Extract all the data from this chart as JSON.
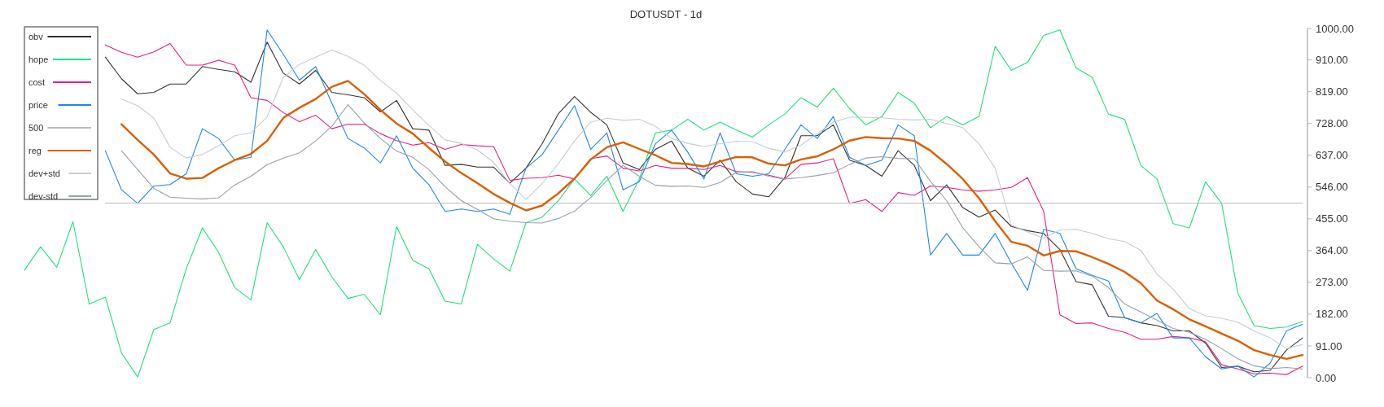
{
  "chart_data": {
    "type": "line",
    "title": "DOTUSDT - 1d",
    "categories": [
      null,
      null,
      null,
      null,
      null,
      null,
      null,
      null,
      null,
      null,
      null,
      null,
      null,
      null,
      null,
      null,
      null,
      null,
      null,
      null,
      null,
      null,
      null,
      null,
      null,
      null,
      null,
      null,
      null,
      null,
      null,
      null,
      null,
      null,
      null,
      null,
      null,
      null,
      null,
      null,
      null,
      null,
      null,
      null,
      null,
      null,
      null,
      null,
      null,
      null,
      null,
      null,
      null,
      null,
      null,
      null,
      null,
      null,
      null,
      null,
      null,
      null,
      null,
      null,
      null,
      null,
      null,
      null,
      null,
      null,
      null,
      null,
      null,
      null,
      null,
      null,
      null,
      null,
      null,
      null
    ],
    "series": [
      {
        "name": "obv",
        "color": "#333333",
        "values": [
          null,
          null,
          null,
          null,
          null,
          918,
          856,
          813,
          817,
          841,
          841,
          891,
          883,
          876,
          846,
          961,
          872,
          841,
          880,
          817,
          810,
          802,
          761,
          794,
          713,
          709,
          608,
          611,
          603,
          603,
          557,
          600,
          670,
          756,
          805,
          760,
          724,
          615,
          596,
          654,
          678,
          600,
          577,
          623,
          561,
          526,
          518,
          573,
          693,
          693,
          724,
          623,
          608,
          577,
          650,
          608,
          507,
          552,
          487,
          460,
          480,
          433,
          421,
          413,
          367,
          275,
          266,
          176,
          172,
          157,
          149,
          134,
          134,
          99,
          29,
          33,
          17,
          21,
          79,
          114
        ]
      },
      {
        "name": "hope",
        "color": "#1ee27a",
        "values": [
          308,
          375,
          316,
          447,
          211,
          231,
          71,
          2,
          138,
          157,
          312,
          429,
          359,
          258,
          223,
          444,
          375,
          281,
          367,
          289,
          227,
          239,
          180,
          433,
          336,
          312,
          219,
          211,
          382,
          340,
          305,
          444,
          460,
          507,
          569,
          522,
          577,
          476,
          569,
          701,
          709,
          740,
          709,
          732,
          709,
          689,
          724,
          755,
          802,
          775,
          829,
          771,
          724,
          748,
          817,
          786,
          716,
          748,
          724,
          748,
          949,
          880,
          903,
          980,
          996,
          887,
          860,
          755,
          740,
          608,
          569,
          441,
          429,
          561,
          499,
          242,
          149,
          141,
          145,
          161
        ]
      },
      {
        "name": "cost",
        "color": "#e91e82",
        "values": [
          null,
          null,
          null,
          null,
          null,
          953,
          932,
          918,
          933,
          957,
          895,
          895,
          909,
          895,
          802,
          794,
          759,
          733,
          752,
          713,
          726,
          726,
          699,
          679,
          666,
          673,
          654,
          668,
          664,
          662,
          565,
          571,
          573,
          580,
          569,
          627,
          635,
          600,
          592,
          608,
          600,
          600,
          596,
          608,
          590,
          588,
          580,
          569,
          611,
          615,
          627,
          499,
          510,
          476,
          530,
          522,
          549,
          545,
          538,
          534,
          538,
          545,
          573,
          476,
          180,
          155,
          157,
          141,
          130,
          110,
          110,
          118,
          114,
          103,
          37,
          25,
          11,
          13,
          9,
          33
        ]
      },
      {
        "name": "price",
        "color": "#1e88e5",
        "values": [
          null,
          null,
          null,
          null,
          null,
          650,
          538,
          499,
          549,
          553,
          584,
          713,
          685,
          623,
          631,
          996,
          926,
          852,
          891,
          786,
          685,
          658,
          615,
          693,
          600,
          553,
          476,
          483,
          476,
          483,
          468,
          600,
          639,
          709,
          779,
          654,
          701,
          538,
          561,
          670,
          709,
          646,
          569,
          701,
          584,
          577,
          584,
          654,
          724,
          685,
          748,
          631,
          608,
          623,
          724,
          693,
          351,
          413,
          351,
          351,
          413,
          328,
          250,
          425,
          413,
          312,
          293,
          277,
          172,
          157,
          184,
          114,
          114,
          60,
          25,
          33,
          2,
          42,
          134,
          153
        ]
      },
      {
        "name": "500",
        "color": "#bdbdbd",
        "values": [
          null,
          null,
          null,
          null,
          null,
          500,
          500,
          500,
          500,
          500,
          500,
          500,
          500,
          500,
          500,
          500,
          500,
          500,
          500,
          500,
          500,
          500,
          500,
          500,
          500,
          500,
          500,
          500,
          500,
          500,
          500,
          500,
          500,
          500,
          500,
          500,
          500,
          500,
          500,
          500,
          500,
          500,
          500,
          500,
          500,
          500,
          500,
          500,
          500,
          500,
          500,
          500,
          500,
          500,
          500,
          500,
          500,
          500,
          500,
          500,
          500,
          500,
          500,
          500,
          500,
          500,
          500,
          500,
          500,
          500,
          500,
          500,
          500,
          500,
          500,
          500,
          500,
          500,
          500,
          500
        ]
      },
      {
        "name": "reg",
        "color": "#d95f02",
        "values": [
          null,
          null,
          null,
          null,
          null,
          null,
          726,
          681,
          639,
          585,
          570,
          572,
          600,
          623,
          641,
          678,
          744,
          773,
          798,
          833,
          850,
          812,
          767,
          728,
          699,
          658,
          619,
          586,
          557,
          526,
          501,
          479,
          493,
          528,
          570,
          625,
          660,
          674,
          655,
          637,
          615,
          612,
          605,
          619,
          632,
          631,
          613,
          608,
          625,
          634,
          654,
          679,
          689,
          686,
          685,
          678,
          650,
          612,
          569,
          514,
          448,
          389,
          378,
          350,
          363,
          362,
          345,
          326,
          303,
          271,
          221,
          196,
          167,
          147,
          126,
          106,
          79,
          65,
          54,
          65
        ]
      },
      {
        "name": "dev+std",
        "color": "#c5cdd2",
        "values": [
          null,
          null,
          null,
          null,
          null,
          null,
          798,
          779,
          744,
          660,
          629,
          639,
          664,
          693,
          701,
          747,
          860,
          897,
          918,
          938,
          920,
          895,
          851,
          815,
          767,
          723,
          681,
          671,
          652,
          617,
          556,
          510,
          556,
          613,
          678,
          732,
          743,
          737,
          740,
          720,
          685,
          671,
          662,
          670,
          677,
          676,
          657,
          646,
          666,
          699,
          732,
          746,
          746,
          744,
          740,
          738,
          740,
          728,
          716,
          670,
          600,
          437,
          417,
          399,
          423,
          425,
          413,
          398,
          390,
          365,
          297,
          254,
          198,
          177,
          170,
          159,
          134,
          114,
          83,
          95
        ]
      },
      {
        "name": "dev-std",
        "color": "#95a2aa",
        "values": [
          null,
          null,
          null,
          null,
          null,
          null,
          650,
          596,
          542,
          517,
          514,
          512,
          515,
          552,
          577,
          610,
          629,
          644,
          678,
          720,
          782,
          730,
          685,
          649,
          631,
          596,
          547,
          507,
          482,
          455,
          448,
          444,
          443,
          456,
          477,
          516,
          565,
          608,
          577,
          551,
          548,
          549,
          545,
          559,
          588,
          590,
          577,
          569,
          573,
          579,
          587,
          611,
          629,
          633,
          628,
          627,
          562,
          507,
          429,
          375,
          329,
          326,
          346,
          307,
          305,
          306,
          291,
          258,
          211,
          188,
          165,
          141,
          130,
          110,
          83,
          54,
          34,
          26,
          29,
          25
        ]
      }
    ],
    "ylim": [
      0,
      1000
    ],
    "yticks": [
      {
        "value": 0,
        "label": "0.00"
      },
      {
        "value": 91,
        "label": "91.00"
      },
      {
        "value": 182,
        "label": "182.00"
      },
      {
        "value": 273,
        "label": "273.00"
      },
      {
        "value": 364,
        "label": "364.00"
      },
      {
        "value": 455,
        "label": "455.00"
      },
      {
        "value": 546,
        "label": "546.00"
      },
      {
        "value": 637,
        "label": "637.00"
      },
      {
        "value": 728,
        "label": "728.00"
      },
      {
        "value": 819,
        "label": "819.00"
      },
      {
        "value": 910,
        "label": "910.00"
      },
      {
        "value": 1000,
        "label": "1000.00"
      }
    ],
    "tick_labels": "y",
    "legend": "top left"
  }
}
